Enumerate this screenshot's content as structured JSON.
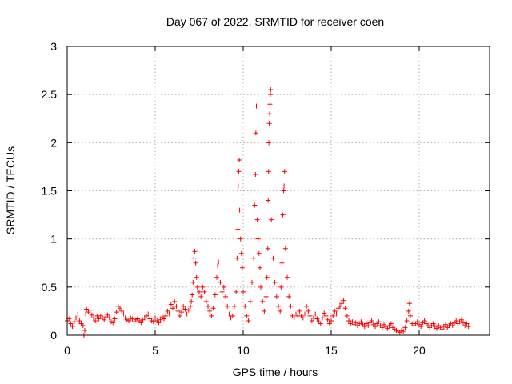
{
  "chart_data": {
    "type": "scatter",
    "title": "Day 067 of 2022, SRMTID for receiver coen",
    "xlabel": "GPS time / hours",
    "ylabel": "SRMTID / TECUs",
    "xlim": [
      0,
      24
    ],
    "ylim": [
      0,
      3
    ],
    "xticks": [
      0,
      5,
      10,
      15,
      20
    ],
    "xtick_labels": [
      "0",
      "5",
      "10",
      "15",
      "20"
    ],
    "yticks": [
      0,
      0.5,
      1,
      1.5,
      2,
      2.5,
      3
    ],
    "ytick_labels": [
      "0",
      "0.5",
      "1",
      "1.5",
      "2",
      "2.5",
      "3"
    ],
    "grid": true,
    "marker": "+",
    "color": "#ff0000",
    "series": [
      {
        "name": "SRMTID",
        "points": [
          [
            0.0,
            0.15
          ],
          [
            0.1,
            0.17
          ],
          [
            0.2,
            0.12
          ],
          [
            0.3,
            0.09
          ],
          [
            0.4,
            0.14
          ],
          [
            0.5,
            0.18
          ],
          [
            0.6,
            0.22
          ],
          [
            0.7,
            0.15
          ],
          [
            0.8,
            0.12
          ],
          [
            0.9,
            0.1
          ],
          [
            0.95,
            0.0
          ],
          [
            1.0,
            0.05
          ],
          [
            1.05,
            0.22
          ],
          [
            1.1,
            0.27
          ],
          [
            1.2,
            0.24
          ],
          [
            1.3,
            0.26
          ],
          [
            1.4,
            0.21
          ],
          [
            1.5,
            0.18
          ],
          [
            1.6,
            0.15
          ],
          [
            1.7,
            0.2
          ],
          [
            1.8,
            0.17
          ],
          [
            1.9,
            0.2
          ],
          [
            2.0,
            0.18
          ],
          [
            2.1,
            0.16
          ],
          [
            2.2,
            0.19
          ],
          [
            2.3,
            0.21
          ],
          [
            2.4,
            0.18
          ],
          [
            2.5,
            0.14
          ],
          [
            2.6,
            0.13
          ],
          [
            2.7,
            0.17
          ],
          [
            2.8,
            0.24
          ],
          [
            2.9,
            0.3
          ],
          [
            3.0,
            0.28
          ],
          [
            3.1,
            0.25
          ],
          [
            3.2,
            0.22
          ],
          [
            3.3,
            0.18
          ],
          [
            3.4,
            0.16
          ],
          [
            3.5,
            0.15
          ],
          [
            3.6,
            0.18
          ],
          [
            3.7,
            0.17
          ],
          [
            3.8,
            0.14
          ],
          [
            3.9,
            0.16
          ],
          [
            4.0,
            0.17
          ],
          [
            4.1,
            0.15
          ],
          [
            4.2,
            0.13
          ],
          [
            4.3,
            0.16
          ],
          [
            4.4,
            0.18
          ],
          [
            4.5,
            0.2
          ],
          [
            4.6,
            0.22
          ],
          [
            4.7,
            0.17
          ],
          [
            4.8,
            0.15
          ],
          [
            4.9,
            0.14
          ],
          [
            5.0,
            0.18
          ],
          [
            5.1,
            0.15
          ],
          [
            5.2,
            0.13
          ],
          [
            5.3,
            0.16
          ],
          [
            5.4,
            0.19
          ],
          [
            5.5,
            0.17
          ],
          [
            5.6,
            0.2
          ],
          [
            5.7,
            0.25
          ],
          [
            5.8,
            0.22
          ],
          [
            5.9,
            0.32
          ],
          [
            6.0,
            0.28
          ],
          [
            6.1,
            0.35
          ],
          [
            6.2,
            0.3
          ],
          [
            6.3,
            0.25
          ],
          [
            6.4,
            0.2
          ],
          [
            6.5,
            0.24
          ],
          [
            6.6,
            0.3
          ],
          [
            6.7,
            0.27
          ],
          [
            6.8,
            0.22
          ],
          [
            6.9,
            0.26
          ],
          [
            7.0,
            0.3
          ],
          [
            7.05,
            0.35
          ],
          [
            7.1,
            0.42
          ],
          [
            7.15,
            0.55
          ],
          [
            7.2,
            0.8
          ],
          [
            7.25,
            0.87
          ],
          [
            7.3,
            0.75
          ],
          [
            7.35,
            0.6
          ],
          [
            7.4,
            0.5
          ],
          [
            7.5,
            0.45
          ],
          [
            7.6,
            0.4
          ],
          [
            7.7,
            0.5
          ],
          [
            7.8,
            0.45
          ],
          [
            7.9,
            0.35
          ],
          [
            8.0,
            0.3
          ],
          [
            8.1,
            0.25
          ],
          [
            8.2,
            0.2
          ],
          [
            8.3,
            0.28
          ],
          [
            8.4,
            0.42
          ],
          [
            8.5,
            0.6
          ],
          [
            8.55,
            0.72
          ],
          [
            8.6,
            0.76
          ],
          [
            8.7,
            0.55
          ],
          [
            8.8,
            0.45
          ],
          [
            8.9,
            0.5
          ],
          [
            9.0,
            0.4
          ],
          [
            9.1,
            0.3
          ],
          [
            9.2,
            0.22
          ],
          [
            9.3,
            0.18
          ],
          [
            9.4,
            0.2
          ],
          [
            9.5,
            0.3
          ],
          [
            9.6,
            0.45
          ],
          [
            9.65,
            0.8
          ],
          [
            9.7,
            1.1
          ],
          [
            9.72,
            1.55
          ],
          [
            9.75,
            1.7
          ],
          [
            9.78,
            1.82
          ],
          [
            9.8,
            1.3
          ],
          [
            9.85,
            1.0
          ],
          [
            9.9,
            0.85
          ],
          [
            9.95,
            0.7
          ],
          [
            10.0,
            0.45
          ],
          [
            10.1,
            0.3
          ],
          [
            10.2,
            0.2
          ],
          [
            10.3,
            0.15
          ],
          [
            10.4,
            0.35
          ],
          [
            10.5,
            0.55
          ],
          [
            10.6,
            0.8
          ],
          [
            10.65,
            1.35
          ],
          [
            10.7,
            1.67
          ],
          [
            10.72,
            2.1
          ],
          [
            10.75,
            2.38
          ],
          [
            10.8,
            1.2
          ],
          [
            10.85,
            1.0
          ],
          [
            10.9,
            0.85
          ],
          [
            10.95,
            0.7
          ],
          [
            11.0,
            0.5
          ],
          [
            11.1,
            0.35
          ],
          [
            11.2,
            0.25
          ],
          [
            11.3,
            0.4
          ],
          [
            11.35,
            0.6
          ],
          [
            11.4,
            0.9
          ],
          [
            11.42,
            1.4
          ],
          [
            11.44,
            1.7
          ],
          [
            11.46,
            2.0
          ],
          [
            11.48,
            2.2
          ],
          [
            11.5,
            2.3
          ],
          [
            11.52,
            2.4
          ],
          [
            11.54,
            2.5
          ],
          [
            11.56,
            2.55
          ],
          [
            11.6,
            1.2
          ],
          [
            11.7,
            0.8
          ],
          [
            11.8,
            0.55
          ],
          [
            11.9,
            0.4
          ],
          [
            12.0,
            0.3
          ],
          [
            12.1,
            0.25
          ],
          [
            12.15,
            0.5
          ],
          [
            12.2,
            0.75
          ],
          [
            12.25,
            1.25
          ],
          [
            12.3,
            1.5
          ],
          [
            12.32,
            1.55
          ],
          [
            12.35,
            1.7
          ],
          [
            12.4,
            0.9
          ],
          [
            12.5,
            0.6
          ],
          [
            12.6,
            0.4
          ],
          [
            12.7,
            0.3
          ],
          [
            12.8,
            0.2
          ],
          [
            12.9,
            0.18
          ],
          [
            13.0,
            0.22
          ],
          [
            13.1,
            0.2
          ],
          [
            13.2,
            0.25
          ],
          [
            13.3,
            0.2
          ],
          [
            13.4,
            0.18
          ],
          [
            13.5,
            0.22
          ],
          [
            13.6,
            0.3
          ],
          [
            13.7,
            0.25
          ],
          [
            13.8,
            0.2
          ],
          [
            13.9,
            0.15
          ],
          [
            14.0,
            0.18
          ],
          [
            14.1,
            0.22
          ],
          [
            14.2,
            0.17
          ],
          [
            14.3,
            0.14
          ],
          [
            14.4,
            0.12
          ],
          [
            14.5,
            0.18
          ],
          [
            14.6,
            0.23
          ],
          [
            14.7,
            0.2
          ],
          [
            14.8,
            0.16
          ],
          [
            14.9,
            0.12
          ],
          [
            15.0,
            0.15
          ],
          [
            15.1,
            0.2
          ],
          [
            15.2,
            0.25
          ],
          [
            15.3,
            0.22
          ],
          [
            15.4,
            0.28
          ],
          [
            15.5,
            0.3
          ],
          [
            15.6,
            0.33
          ],
          [
            15.7,
            0.36
          ],
          [
            15.8,
            0.28
          ],
          [
            15.9,
            0.2
          ],
          [
            16.0,
            0.15
          ],
          [
            16.1,
            0.12
          ],
          [
            16.2,
            0.14
          ],
          [
            16.3,
            0.11
          ],
          [
            16.4,
            0.13
          ],
          [
            16.5,
            0.1
          ],
          [
            16.6,
            0.12
          ],
          [
            16.7,
            0.14
          ],
          [
            16.8,
            0.11
          ],
          [
            16.9,
            0.09
          ],
          [
            17.0,
            0.12
          ],
          [
            17.1,
            0.1
          ],
          [
            17.2,
            0.13
          ],
          [
            17.3,
            0.15
          ],
          [
            17.4,
            0.11
          ],
          [
            17.5,
            0.09
          ],
          [
            17.6,
            0.12
          ],
          [
            17.7,
            0.14
          ],
          [
            17.8,
            0.1
          ],
          [
            17.9,
            0.08
          ],
          [
            18.0,
            0.11
          ],
          [
            18.1,
            0.09
          ],
          [
            18.2,
            0.07
          ],
          [
            18.3,
            0.1
          ],
          [
            18.4,
            0.12
          ],
          [
            18.5,
            0.08
          ],
          [
            18.6,
            0.06
          ],
          [
            18.7,
            0.05
          ],
          [
            18.8,
            0.04
          ],
          [
            18.9,
            0.03
          ],
          [
            19.0,
            0.05
          ],
          [
            19.1,
            0.04
          ],
          [
            19.2,
            0.08
          ],
          [
            19.3,
            0.15
          ],
          [
            19.4,
            0.25
          ],
          [
            19.45,
            0.33
          ],
          [
            19.5,
            0.2
          ],
          [
            19.6,
            0.12
          ],
          [
            19.7,
            0.1
          ],
          [
            19.8,
            0.12
          ],
          [
            19.9,
            0.14
          ],
          [
            20.0,
            0.11
          ],
          [
            20.1,
            0.09
          ],
          [
            20.2,
            0.13
          ],
          [
            20.3,
            0.15
          ],
          [
            20.4,
            0.12
          ],
          [
            20.5,
            0.1
          ],
          [
            20.6,
            0.08
          ],
          [
            20.7,
            0.1
          ],
          [
            20.8,
            0.12
          ],
          [
            20.9,
            0.09
          ],
          [
            21.0,
            0.07
          ],
          [
            21.1,
            0.1
          ],
          [
            21.2,
            0.08
          ],
          [
            21.3,
            0.06
          ],
          [
            21.4,
            0.09
          ],
          [
            21.5,
            0.11
          ],
          [
            21.6,
            0.08
          ],
          [
            21.7,
            0.1
          ],
          [
            21.8,
            0.12
          ],
          [
            21.9,
            0.1
          ],
          [
            22.0,
            0.13
          ],
          [
            22.1,
            0.15
          ],
          [
            22.2,
            0.12
          ],
          [
            22.3,
            0.14
          ],
          [
            22.4,
            0.16
          ],
          [
            22.5,
            0.13
          ],
          [
            22.6,
            0.1
          ],
          [
            22.7,
            0.12
          ],
          [
            22.8,
            0.09
          ]
        ]
      }
    ]
  }
}
